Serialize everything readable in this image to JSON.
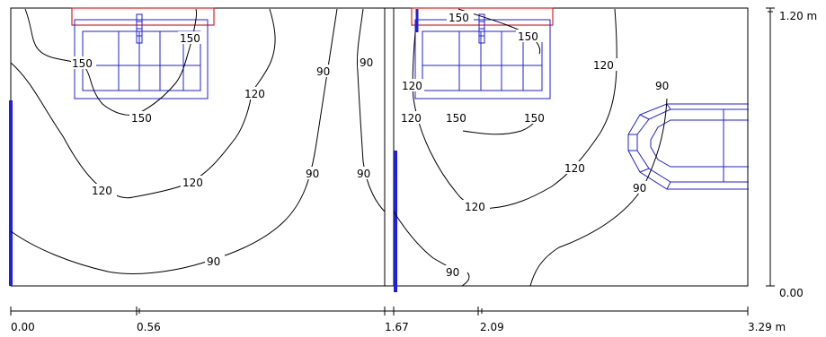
{
  "diagram": {
    "type": "isolux-contour-plan",
    "x_axis": {
      "ticks": [
        {
          "value": 0.0,
          "label": "0.00"
        },
        {
          "value": 0.56,
          "label": "0.56"
        },
        {
          "value": 1.67,
          "label": "1.67"
        },
        {
          "value": 2.09,
          "label": "2.09"
        },
        {
          "value": 3.29,
          "label": "3.29 m"
        }
      ]
    },
    "y_axis": {
      "ticks": [
        {
          "value": 0.0,
          "label": "0.00"
        },
        {
          "value": 1.2,
          "label": "1.20 m"
        }
      ]
    },
    "contour_labels": [
      "150",
      "150",
      "150",
      "120",
      "90",
      "90",
      "120",
      "90",
      "90",
      "120",
      "120",
      "90",
      "150",
      "150",
      "150",
      "120",
      "90",
      "120",
      "150",
      "150",
      "120",
      "120",
      "90",
      "90"
    ],
    "colors": {
      "contour": "#000000",
      "luminaire": "#1f1fe0",
      "window": "#e02020",
      "wall": "#1f1fe0"
    }
  }
}
